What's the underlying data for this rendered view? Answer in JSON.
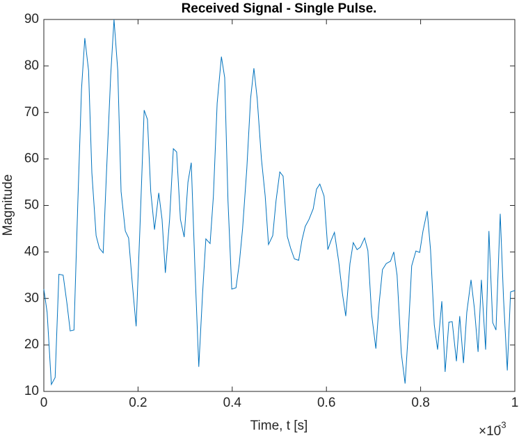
{
  "chart_data": {
    "type": "line",
    "title": "Received Signal - Single Pulse.",
    "xlabel": "Time, t [s]",
    "ylabel": "Magnitude",
    "x_multiplier": "×10",
    "x_multiplier_exponent": "-3",
    "xlim": [
      0,
      1
    ],
    "ylim": [
      10,
      90
    ],
    "xticks": [
      0,
      0.2,
      0.4,
      0.6,
      0.8,
      {
        "value": 1,
        "label": "1"
      }
    ],
    "yticks": [
      10,
      20,
      30,
      40,
      50,
      60,
      70,
      80,
      90
    ],
    "grid": false,
    "x": [
      0,
      0.007,
      0.016,
      0.024,
      0.032,
      0.041,
      0.049,
      0.056,
      0.064,
      0.072,
      0.08,
      0.087,
      0.095,
      0.102,
      0.111,
      0.118,
      0.126,
      0.133,
      0.142,
      0.149,
      0.157,
      0.164,
      0.173,
      0.18,
      0.188,
      0.196,
      0.204,
      0.213,
      0.22,
      0.227,
      0.235,
      0.244,
      0.251,
      0.258,
      0.267,
      0.275,
      0.282,
      0.29,
      0.298,
      0.306,
      0.313,
      0.321,
      0.329,
      0.337,
      0.344,
      0.353,
      0.36,
      0.368,
      0.377,
      0.384,
      0.391,
      0.399,
      0.408,
      0.415,
      0.422,
      0.431,
      0.439,
      0.446,
      0.453,
      0.462,
      0.47,
      0.477,
      0.486,
      0.493,
      0.501,
      0.508,
      0.517,
      0.524,
      0.532,
      0.541,
      0.548,
      0.555,
      0.563,
      0.572,
      0.579,
      0.586,
      0.595,
      0.603,
      0.61,
      0.617,
      0.626,
      0.634,
      0.641,
      0.65,
      0.657,
      0.665,
      0.672,
      0.681,
      0.688,
      0.696,
      0.705,
      0.712,
      0.719,
      0.727,
      0.736,
      0.743,
      0.75,
      0.759,
      0.767,
      0.774,
      0.781,
      0.79,
      0.798,
      0.805,
      0.814,
      0.821,
      0.829,
      0.836,
      0.845,
      0.852,
      0.86,
      0.867,
      0.876,
      0.883,
      0.891,
      0.898,
      0.907,
      0.914,
      0.922,
      0.929,
      0.938,
      0.945,
      0.953,
      0.96,
      0.969,
      0.976,
      0.984,
      0.991,
      1
    ],
    "series": [
      {
        "color": "#0072BD",
        "values": [
          32,
          27,
          11.5,
          13,
          35.2,
          35,
          29,
          23,
          23.2,
          50,
          75,
          86,
          79,
          57,
          43.5,
          40.8,
          39.8,
          57,
          78,
          90,
          79,
          53,
          44.5,
          43,
          33,
          24,
          45,
          70.5,
          68.5,
          53,
          44.8,
          52.7,
          47,
          35.5,
          47,
          62.2,
          61.5,
          47,
          43.2,
          55,
          59.2,
          36,
          15.3,
          31,
          42.8,
          41.8,
          52,
          72,
          82,
          77.5,
          51,
          32,
          32.3,
          37.5,
          45,
          58,
          73,
          79.5,
          73,
          60,
          52,
          41.6,
          43.5,
          51,
          57.2,
          56.3,
          43.3,
          40.8,
          38.5,
          38.2,
          42.5,
          45.5,
          47,
          49.3,
          53.5,
          54.6,
          52,
          40.5,
          42.5,
          44.2,
          38,
          31,
          26.2,
          37.5,
          42,
          40.5,
          41,
          43,
          40.3,
          26.5,
          19.2,
          29,
          36.2,
          37.5,
          38,
          40,
          35,
          18.2,
          11.7,
          23,
          37,
          40.2,
          39.9,
          44.5,
          48.8,
          40.5,
          24.3,
          19,
          29.4,
          14.2,
          24.9,
          25,
          16.5,
          26.2,
          16.1,
          27,
          34,
          28,
          18.5,
          34,
          19,
          44.5,
          24.8,
          23.2,
          48.2,
          30,
          14.5,
          31.4,
          31.7
        ]
      }
    ]
  }
}
